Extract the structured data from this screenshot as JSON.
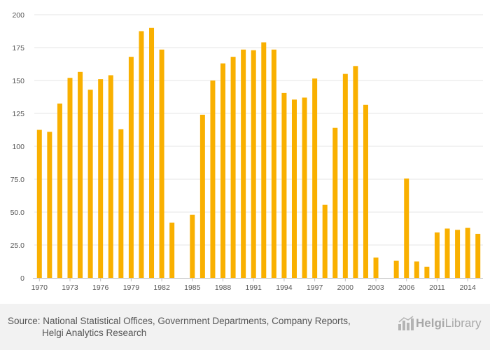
{
  "colors": {
    "bar": "#F9B000",
    "grid": "#E6E6E6",
    "axis": "#C0C0C0",
    "text": "#555555",
    "footer_bg": "#F2F2F2"
  },
  "chart_data": {
    "type": "bar",
    "title": "",
    "xlabel": "",
    "ylabel": "",
    "ylim": [
      0,
      200
    ],
    "yticks": [
      0,
      25.0,
      50.0,
      75.0,
      100,
      125,
      150,
      175,
      200
    ],
    "ytick_labels": [
      "0",
      "25.0",
      "50.0",
      "75.0",
      "100",
      "125",
      "150",
      "175",
      "200"
    ],
    "xtick_labels": [
      "1970",
      "1973",
      "1976",
      "1979",
      "1982",
      "1985",
      "1988",
      "1991",
      "1994",
      "1997",
      "2000",
      "2003",
      "2006",
      "2011",
      "2014"
    ],
    "categories": [
      "1970",
      "1971",
      "1972",
      "1973",
      "1974",
      "1975",
      "1976",
      "1977",
      "1978",
      "1979",
      "1980",
      "1981",
      "1982",
      "1983",
      "1984",
      "1985",
      "1986",
      "1987",
      "1988",
      "1989",
      "1990",
      "1991",
      "1992",
      "1993",
      "1994",
      "1995",
      "1996",
      "1997",
      "1998",
      "1999",
      "2000",
      "2001",
      "2002",
      "2003",
      "2004",
      "2005",
      "2006",
      "2007",
      "2008",
      "2011",
      "2012",
      "2013",
      "2014",
      "2015"
    ],
    "values": [
      112.5,
      111,
      132.5,
      152,
      156.5,
      143,
      151,
      154,
      113,
      168,
      187.5,
      190,
      173.5,
      42,
      null,
      48,
      124,
      150,
      163,
      168,
      173.5,
      173,
      179,
      173.5,
      140.5,
      135.5,
      137,
      151.5,
      55.5,
      114,
      155,
      161,
      131.5,
      15.5,
      null,
      13,
      75.5,
      12.5,
      8.5,
      34.5,
      37.5,
      36.5,
      38,
      33.5
    ]
  },
  "footer": {
    "source_line1": "Source: National Statistical Offices, Government Departments, Company Reports,",
    "source_line2": "Helgi Analytics Research",
    "logo_brand": "Helgi",
    "logo_suffix": "Library"
  }
}
